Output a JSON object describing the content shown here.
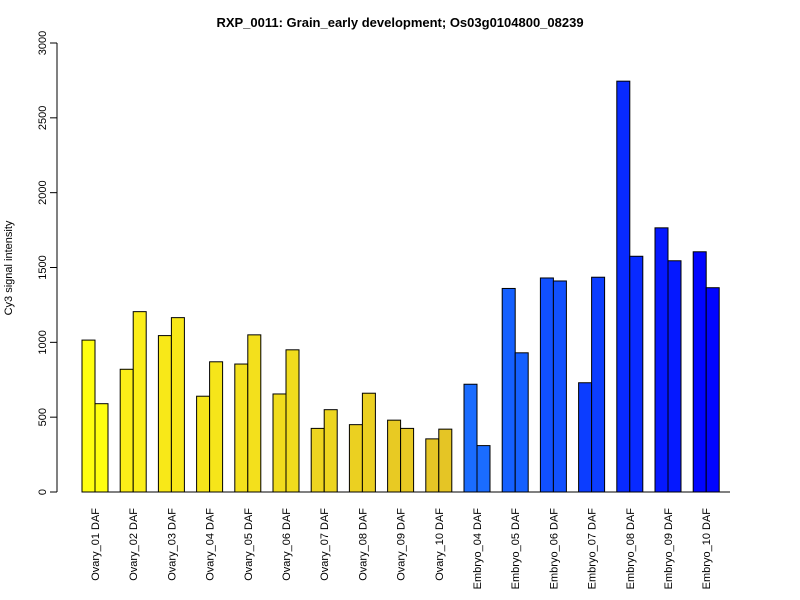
{
  "chart_data": {
    "type": "bar",
    "title": "RXP_0011: Grain_early development; Os03g0104800_08239",
    "xlabel": "",
    "ylabel": "Cy3 signal intensity",
    "ylim": [
      0,
      3000
    ],
    "yticks": [
      0,
      500,
      1000,
      1500,
      2000,
      2500,
      3000
    ],
    "grid": false,
    "legend": "none",
    "categories": [
      "Ovary_01 DAF",
      "Ovary_02 DAF",
      "Ovary_03 DAF",
      "Ovary_04 DAF",
      "Ovary_05 DAF",
      "Ovary_06 DAF",
      "Ovary_07 DAF",
      "Ovary_08 DAF",
      "Ovary_09 DAF",
      "Ovary_10 DAF",
      "Embryo_04 DAF",
      "Embryo_05 DAF",
      "Embryo_06 DAF",
      "Embryo_07 DAF",
      "Embryo_08 DAF",
      "Embryo_09 DAF",
      "Embryo_10 DAF"
    ],
    "colors": [
      "#ffff10",
      "#fbed18",
      "#f8e818",
      "#f6e51a",
      "#f3e01c",
      "#f0dc1d",
      "#edd520",
      "#ebd021",
      "#e8ca23",
      "#e5c525",
      "#1a6cff",
      "#1560ff",
      "#1150ff",
      "#0c3dff",
      "#082aff",
      "#0518ff",
      "#0205ff"
    ],
    "series": [
      {
        "values": [
          1015,
          820,
          1045,
          640,
          855,
          655,
          425,
          450,
          480,
          355,
          720,
          1360,
          1430,
          730,
          2745,
          1765,
          1605
        ]
      },
      {
        "values": [
          590,
          1205,
          1165,
          870,
          1050,
          950,
          550,
          660,
          425,
          420,
          310,
          930,
          1410,
          1435,
          1575,
          1545,
          1365
        ]
      }
    ]
  }
}
